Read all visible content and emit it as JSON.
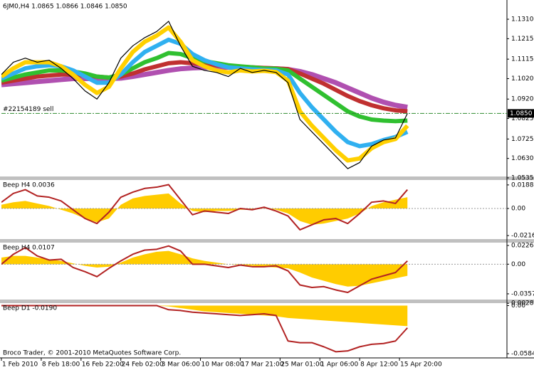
{
  "x_axis": {
    "x": [
      0,
      3,
      6,
      9,
      12,
      15,
      18,
      21,
      24,
      27,
      30,
      33,
      36,
      39,
      42,
      45,
      48,
      51,
      54,
      57,
      60,
      63,
      66,
      69,
      72,
      75,
      78,
      81,
      84,
      87,
      90,
      93,
      96,
      99,
      102
    ],
    "xlim": [
      0,
      127
    ],
    "xticks": [
      {
        "value": 0,
        "label": "1 Feb 2010"
      },
      {
        "value": 10,
        "label": "8 Feb 18:00"
      },
      {
        "value": 20,
        "label": "16 Feb 22:00"
      },
      {
        "value": 30,
        "label": "24 Feb 02:00"
      },
      {
        "value": 40,
        "label": "3 Mar 06:00"
      },
      {
        "value": 50,
        "label": "10 Mar 08:00"
      },
      {
        "value": 60,
        "label": "17 Mar 21:00"
      },
      {
        "value": 70,
        "label": "25 Mar 01:00"
      },
      {
        "value": 80,
        "label": "1 Apr 06:00"
      },
      {
        "value": 90,
        "label": "8 Apr 12:00"
      },
      {
        "value": 100,
        "label": "15 Apr 20:00"
      }
    ]
  },
  "footer": "Broco Trader, © 2001-2010 MetaQuotes Software Corp.",
  "chart_data": [
    {
      "type": "line",
      "title": "6JM0,H4 1.0865 1.0866 1.0846 1.0850",
      "ylim": [
        1.0542,
        1.1397
      ],
      "yticks": [
        {
          "value": 1.131,
          "label": "1.1310"
        },
        1.1215,
        1.1115,
        {
          "value": 1.102,
          "label": "1.1020"
        },
        {
          "value": 1.092,
          "label": "1.0920"
        },
        1.0825,
        1.0725,
        {
          "value": 1.063,
          "label": "1.0630"
        },
        1.0535
      ],
      "order_line": {
        "label": "#22154189 sell",
        "value": 1.085,
        "color": "#2e8b2e"
      },
      "price_label": {
        "value": 1.085,
        "label": "1.0850"
      },
      "series": [
        {
          "color": "#b050b0",
          "width": 7,
          "values": [
            1.099,
            1.0995,
            1.1,
            1.1005,
            1.101,
            1.1015,
            1.102,
            1.102,
            1.102,
            1.102,
            1.1022,
            1.103,
            1.104,
            1.105,
            1.106,
            1.1068,
            1.1072,
            1.1074,
            1.1075,
            1.1075,
            1.1074,
            1.1072,
            1.107,
            1.1068,
            1.1065,
            1.1055,
            1.104,
            1.102,
            1.1,
            1.0975,
            1.095,
            1.0925,
            1.0905,
            1.089,
            1.088
          ]
        },
        {
          "color": "#c03030",
          "width": 6,
          "values": [
            1.1,
            1.101,
            1.102,
            1.103,
            1.1035,
            1.104,
            1.104,
            1.1035,
            1.103,
            1.1025,
            1.103,
            1.1045,
            1.1065,
            1.108,
            1.1095,
            1.11,
            1.1095,
            1.109,
            1.1085,
            1.108,
            1.1078,
            1.1075,
            1.1072,
            1.107,
            1.1066,
            1.1045,
            1.102,
            1.0995,
            1.0965,
            1.0935,
            1.091,
            1.089,
            1.0875,
            1.0865,
            1.086
          ]
        },
        {
          "color": "#30c030",
          "width": 6,
          "values": [
            1.101,
            1.1025,
            1.104,
            1.105,
            1.106,
            1.106,
            1.1055,
            1.1045,
            1.103,
            1.1025,
            1.104,
            1.107,
            1.11,
            1.112,
            1.1145,
            1.114,
            1.112,
            1.1105,
            1.1095,
            1.1085,
            1.108,
            1.1075,
            1.107,
            1.1068,
            1.106,
            1.102,
            1.098,
            1.094,
            1.09,
            1.086,
            1.0835,
            1.082,
            1.0815,
            1.0812,
            1.0815
          ]
        },
        {
          "color": "#30b0f0",
          "width": 6,
          "values": [
            1.102,
            1.1045,
            1.107,
            1.108,
            1.1085,
            1.108,
            1.106,
            1.103,
            1.1,
            1.1,
            1.104,
            1.11,
            1.115,
            1.118,
            1.121,
            1.119,
            1.114,
            1.111,
            1.109,
            1.1075,
            1.107,
            1.1065,
            1.1062,
            1.106,
            1.104,
            1.095,
            1.088,
            1.082,
            1.076,
            1.071,
            1.069,
            1.07,
            1.072,
            1.0735,
            1.076
          ]
        },
        {
          "color": "#ffd000",
          "width": 6,
          "values": [
            1.103,
            1.107,
            1.11,
            1.11,
            1.11,
            1.108,
            1.104,
            1.099,
            1.095,
            1.098,
            1.107,
            1.115,
            1.12,
            1.123,
            1.127,
            1.12,
            1.111,
            1.108,
            1.106,
            1.105,
            1.106,
            1.1055,
            1.1058,
            1.1052,
            1.101,
            1.086,
            1.079,
            1.073,
            1.067,
            1.062,
            1.063,
            1.068,
            1.071,
            1.0725,
            1.079
          ]
        },
        {
          "color": "#000000",
          "width": 1.2,
          "values": [
            1.104,
            1.11,
            1.112,
            1.11,
            1.111,
            1.107,
            1.102,
            1.096,
            1.092,
            1.1,
            1.112,
            1.118,
            1.122,
            1.125,
            1.13,
            1.118,
            1.108,
            1.106,
            1.105,
            1.103,
            1.107,
            1.105,
            1.106,
            1.105,
            1.1,
            1.082,
            1.076,
            1.07,
            1.064,
            1.058,
            1.061,
            1.069,
            1.072,
            1.073,
            1.085
          ]
        }
      ]
    },
    {
      "type": "line",
      "title": "Beep  H4 0.0036",
      "ylim": [
        -0.0244,
        0.0227
      ],
      "yticks": [
        0.0188,
        {
          "value": 0,
          "label": "0.00"
        },
        -0.0216
      ],
      "zero_line": true,
      "histogram": {
        "color": "#ffcc00",
        "values": [
          0.003,
          0.005,
          0.006,
          0.004,
          0.002,
          -0.001,
          -0.004,
          -0.008,
          -0.011,
          -0.008,
          0.003,
          0.008,
          0.01,
          0.011,
          0.012,
          0.004,
          -0.002,
          -0.003,
          -0.002,
          -0.002,
          -0.001,
          -0.001,
          0.0,
          -0.001,
          -0.004,
          -0.01,
          -0.013,
          -0.012,
          -0.01,
          -0.008,
          -0.004,
          0.002,
          0.005,
          0.007,
          0.009
        ]
      },
      "series": [
        {
          "color": "#b22222",
          "width": 2,
          "values": [
            0.005,
            0.012,
            0.015,
            0.01,
            0.009,
            0.006,
            -0.001,
            -0.008,
            -0.012,
            -0.003,
            0.009,
            0.013,
            0.016,
            0.017,
            0.019,
            0.007,
            -0.005,
            -0.002,
            -0.003,
            -0.004,
            0.0,
            -0.001,
            0.001,
            -0.002,
            -0.006,
            -0.017,
            -0.013,
            -0.009,
            -0.008,
            -0.012,
            -0.004,
            0.005,
            0.006,
            0.004,
            0.015
          ]
        }
      ]
    },
    {
      "type": "line",
      "title": "Beep  H4 0.0107",
      "ylim": [
        -0.0426,
        0.026
      ],
      "yticks": [
        0.0226,
        {
          "value": 0,
          "label": "0.00"
        },
        -0.0357
      ],
      "zero_line": true,
      "histogram": {
        "color": "#ffcc00",
        "values": [
          0.008,
          0.01,
          0.01,
          0.008,
          0.006,
          0.004,
          0.001,
          -0.002,
          -0.004,
          -0.003,
          0.002,
          0.008,
          0.012,
          0.015,
          0.016,
          0.012,
          0.007,
          0.004,
          0.002,
          0.0,
          -0.001,
          -0.002,
          -0.003,
          -0.004,
          -0.005,
          -0.01,
          -0.016,
          -0.02,
          -0.024,
          -0.027,
          -0.026,
          -0.023,
          -0.02,
          -0.017,
          -0.014
        ]
      },
      "series": [
        {
          "color": "#b22222",
          "width": 2,
          "values": [
            0.0,
            0.012,
            0.02,
            0.01,
            0.005,
            0.006,
            -0.004,
            -0.009,
            -0.015,
            -0.005,
            0.004,
            0.012,
            0.017,
            0.018,
            0.022,
            0.016,
            0.0,
            0.0,
            -0.002,
            -0.004,
            -0.001,
            -0.003,
            -0.003,
            -0.002,
            -0.008,
            -0.025,
            -0.028,
            -0.027,
            -0.031,
            -0.034,
            -0.026,
            -0.018,
            -0.014,
            -0.01,
            0.004
          ]
        }
      ]
    },
    {
      "type": "line",
      "title": "Beep  D1 -0.0190",
      "ylim": [
        -0.0635,
        0.003
      ],
      "yticks": [
        0.0028,
        {
          "value": 0,
          "label": "0.00"
        },
        -0.0584
      ],
      "zero_line": false,
      "histogram": {
        "color": "#ffcc00",
        "values": [
          0,
          0,
          0,
          0,
          0,
          0,
          0,
          0,
          0,
          0,
          0,
          0,
          0,
          0,
          -0.001,
          -0.003,
          -0.005,
          -0.007,
          -0.008,
          -0.009,
          -0.01,
          -0.011,
          -0.012,
          -0.013,
          -0.015,
          -0.016,
          -0.017,
          -0.018,
          -0.019,
          -0.02,
          -0.021,
          -0.022,
          -0.023,
          -0.024,
          -0.025
        ]
      },
      "series": [
        {
          "color": "#b22222",
          "width": 2,
          "values": [
            0,
            0,
            0,
            0,
            0,
            0,
            0,
            0,
            0,
            0,
            0,
            0,
            0,
            0,
            -0.005,
            -0.006,
            -0.008,
            -0.009,
            -0.01,
            -0.011,
            -0.012,
            -0.011,
            -0.01,
            -0.012,
            -0.043,
            -0.045,
            -0.045,
            -0.05,
            -0.056,
            -0.055,
            -0.05,
            -0.047,
            -0.046,
            -0.043,
            -0.027
          ]
        }
      ]
    }
  ]
}
